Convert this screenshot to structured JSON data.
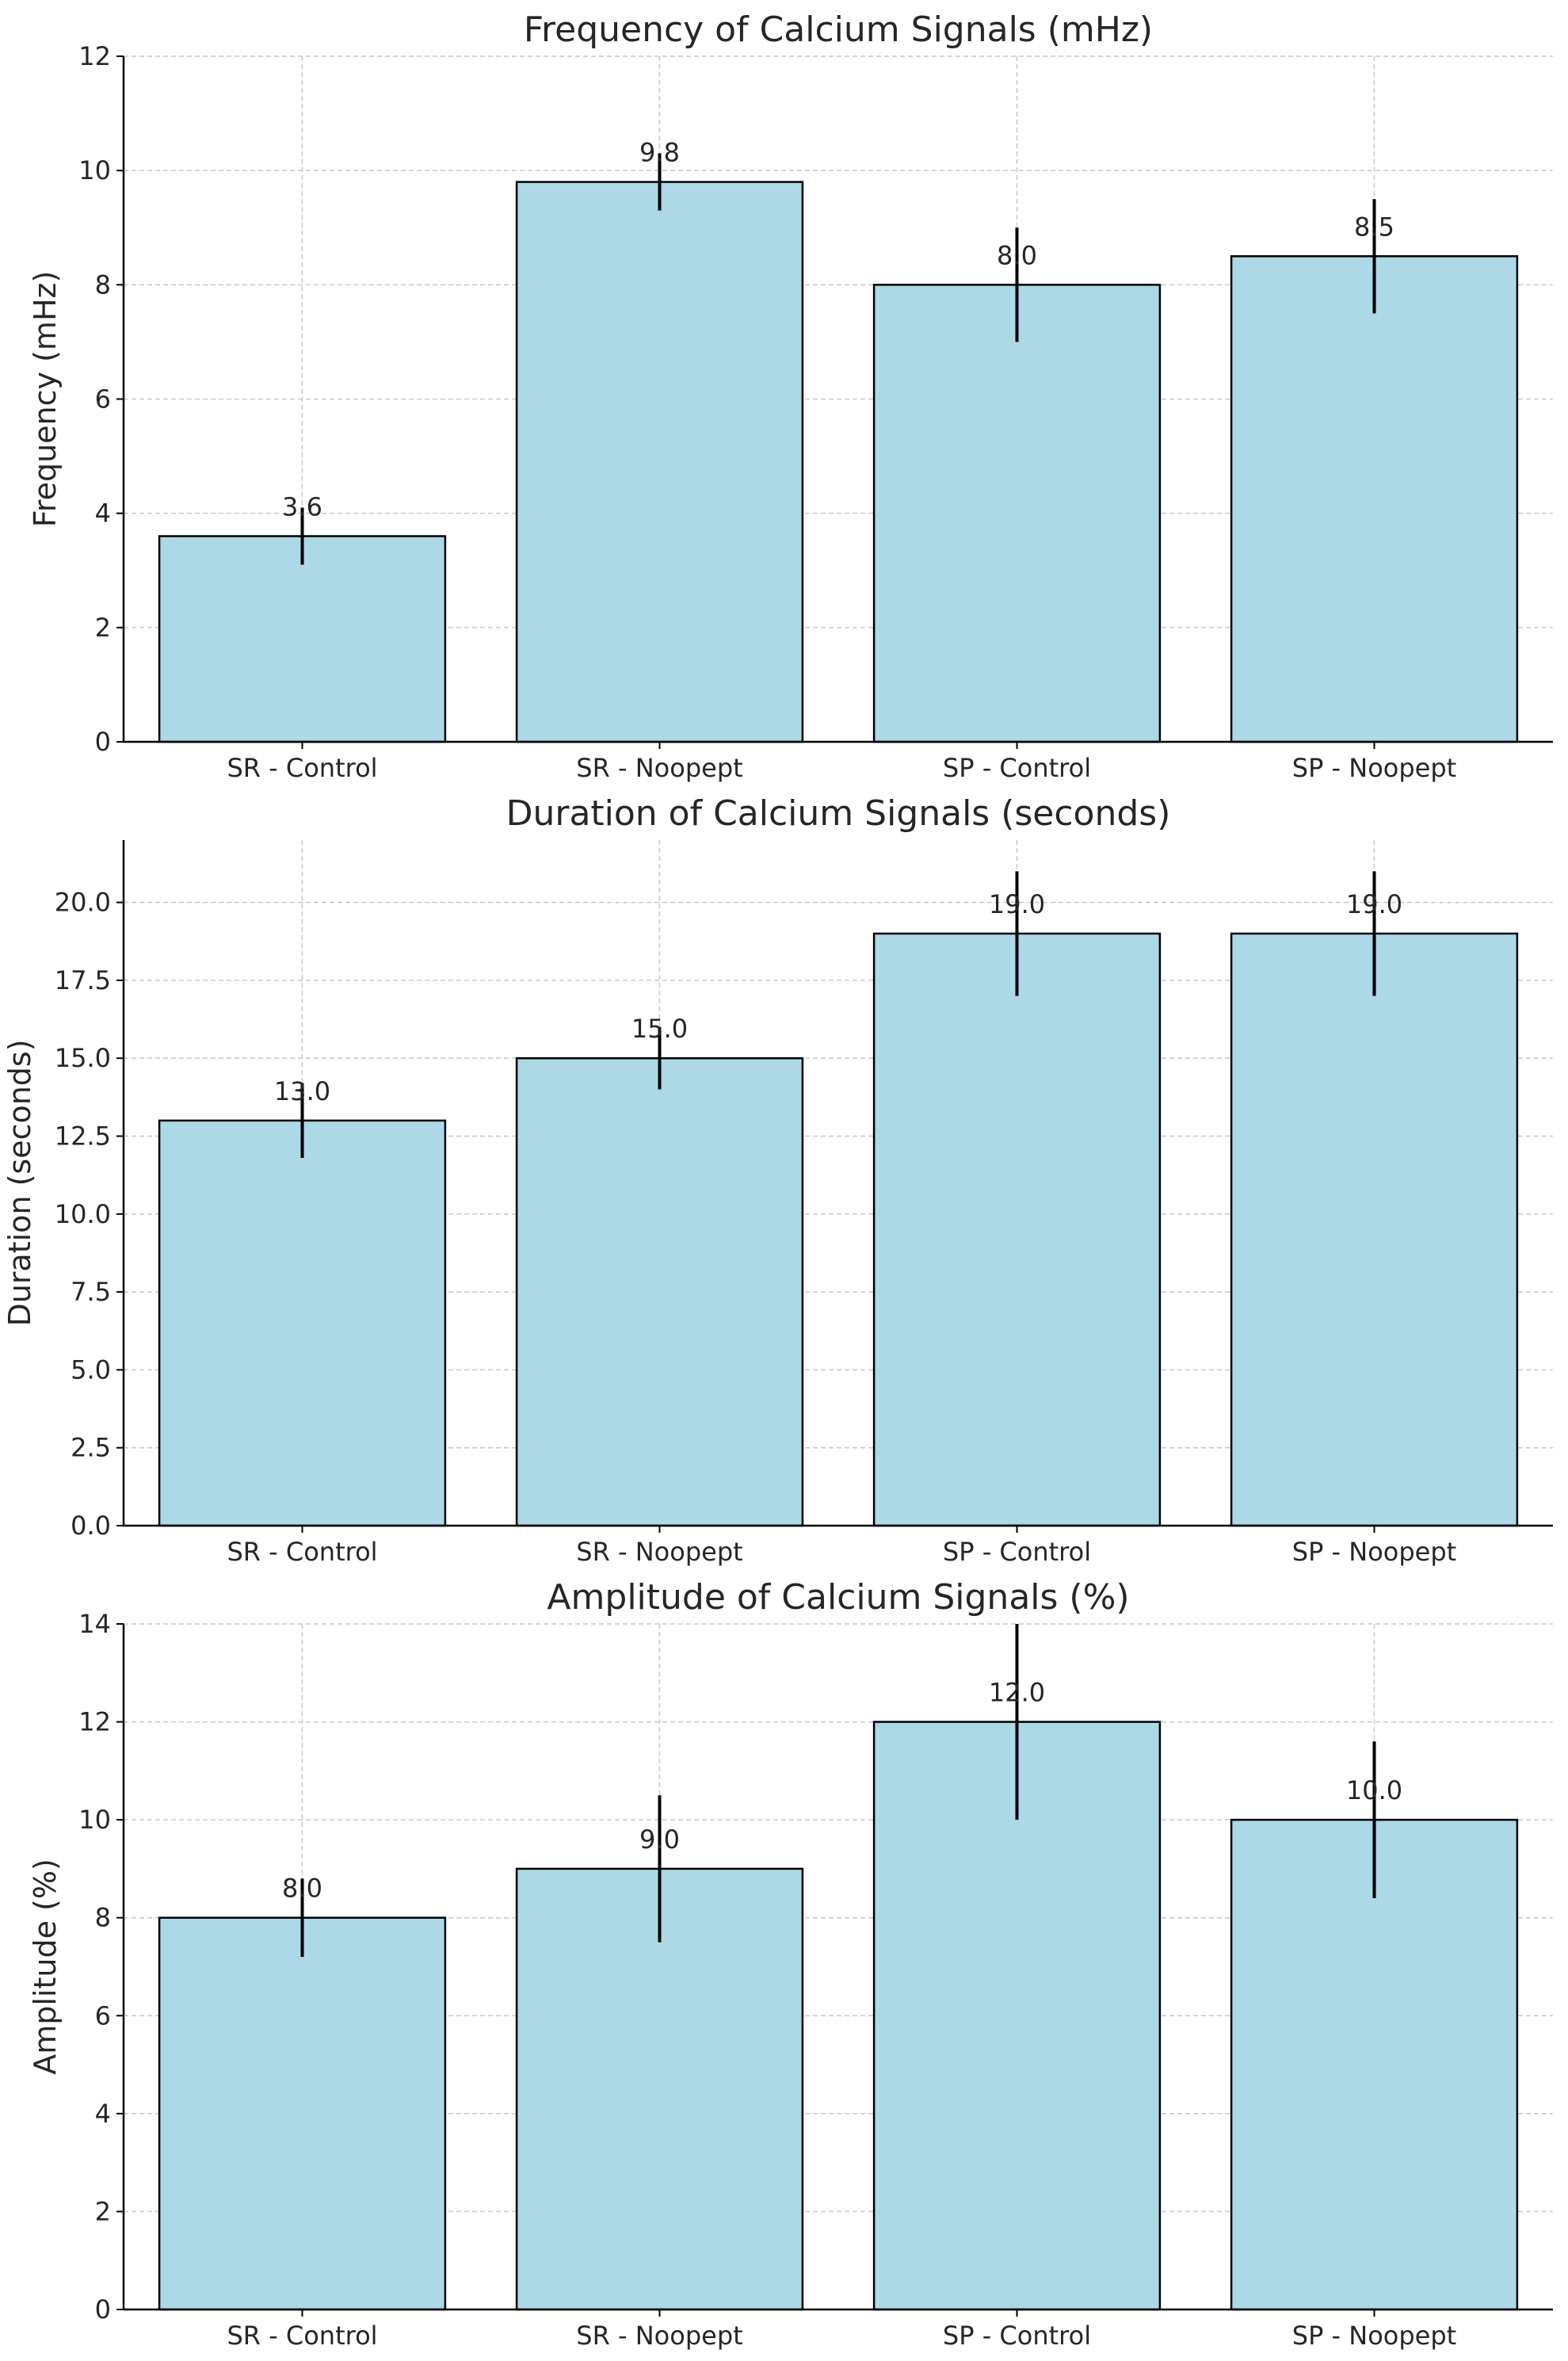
{
  "bar_color": "#add8e6",
  "chart_data": [
    {
      "type": "bar",
      "title": "Frequency of Calcium Signals (mHz)",
      "xlabel": "",
      "ylabel": "Frequency (mHz)",
      "categories": [
        "SR - Control",
        "SR - Noopept",
        "SP - Control",
        "SP - Noopept"
      ],
      "values": [
        3.6,
        9.8,
        8.0,
        8.5
      ],
      "errors": [
        0.5,
        0.5,
        1.0,
        1.0
      ],
      "value_labels": [
        "3.6",
        "9.8",
        "8.0",
        "8.5"
      ],
      "ylim": [
        0,
        12
      ],
      "yticks": [
        0,
        2,
        4,
        6,
        8,
        10,
        12
      ],
      "ytick_labels": [
        "0",
        "2",
        "4",
        "6",
        "8",
        "10",
        "12"
      ],
      "grid": true
    },
    {
      "type": "bar",
      "title": "Duration of Calcium Signals (seconds)",
      "xlabel": "",
      "ylabel": "Duration (seconds)",
      "categories": [
        "SR - Control",
        "SR - Noopept",
        "SP - Control",
        "SP - Noopept"
      ],
      "values": [
        13.0,
        15.0,
        19.0,
        19.0
      ],
      "errors": [
        1.2,
        1.0,
        2.0,
        2.0
      ],
      "value_labels": [
        "13.0",
        "15.0",
        "19.0",
        "19.0"
      ],
      "ylim": [
        0,
        22
      ],
      "yticks": [
        0,
        2.5,
        5,
        7.5,
        10,
        12.5,
        15,
        17.5,
        20
      ],
      "ytick_labels": [
        "0.0",
        "2.5",
        "5.0",
        "7.5",
        "10.0",
        "12.5",
        "15.0",
        "17.5",
        "20.0"
      ],
      "grid": true
    },
    {
      "type": "bar",
      "title": "Amplitude of Calcium Signals (%)",
      "xlabel": "",
      "ylabel": "Amplitude (%)",
      "categories": [
        "SR - Control",
        "SR - Noopept",
        "SP - Control",
        "SP - Noopept"
      ],
      "values": [
        8.0,
        9.0,
        12.0,
        10.0
      ],
      "errors": [
        0.8,
        1.5,
        2.0,
        1.6
      ],
      "value_labels": [
        "8.0",
        "9.0",
        "12.0",
        "10.0"
      ],
      "ylim": [
        0,
        14
      ],
      "yticks": [
        0,
        2,
        4,
        6,
        8,
        10,
        12,
        14
      ],
      "ytick_labels": [
        "0",
        "2",
        "4",
        "6",
        "8",
        "10",
        "12",
        "14"
      ],
      "grid": true
    }
  ]
}
